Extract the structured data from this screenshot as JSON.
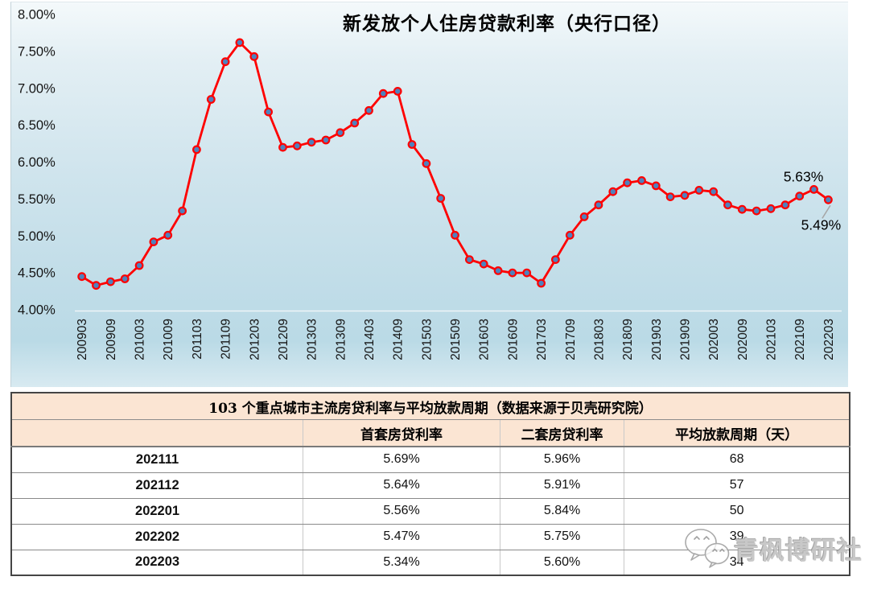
{
  "chart_data": {
    "type": "line",
    "title": "新发放个人住房贷款利率（央行口径）",
    "xlabel": "",
    "ylabel": "",
    "ylim": [
      4.0,
      8.0
    ],
    "grid": false,
    "legend": "none",
    "y_ticks": [
      "8.00%",
      "7.50%",
      "7.00%",
      "6.50%",
      "6.00%",
      "5.50%",
      "5.00%",
      "4.50%",
      "4.00%"
    ],
    "x_tick_labels": [
      "200903",
      "200909",
      "201003",
      "201009",
      "201103",
      "201109",
      "201203",
      "201209",
      "201303",
      "201309",
      "201403",
      "201409",
      "201503",
      "201509",
      "201603",
      "201609",
      "201703",
      "201709",
      "201803",
      "201809",
      "201903",
      "201909",
      "202003",
      "202009",
      "202103",
      "202109",
      "202203"
    ],
    "x": [
      "200903",
      "200906",
      "200909",
      "200912",
      "201003",
      "201006",
      "201009",
      "201012",
      "201103",
      "201106",
      "201109",
      "201112",
      "201203",
      "201206",
      "201209",
      "201212",
      "201303",
      "201306",
      "201309",
      "201312",
      "201403",
      "201406",
      "201409",
      "201412",
      "201503",
      "201506",
      "201509",
      "201512",
      "201603",
      "201606",
      "201609",
      "201612",
      "201703",
      "201706",
      "201709",
      "201712",
      "201803",
      "201806",
      "201809",
      "201812",
      "201903",
      "201906",
      "201909",
      "201912",
      "202003",
      "202006",
      "202009",
      "202012",
      "202103",
      "202106",
      "202109",
      "202112",
      "202203"
    ],
    "values": [
      4.45,
      4.33,
      4.38,
      4.42,
      4.6,
      4.92,
      5.01,
      5.34,
      6.17,
      6.85,
      7.36,
      7.62,
      7.43,
      6.68,
      6.2,
      6.22,
      6.27,
      6.3,
      6.4,
      6.53,
      6.7,
      6.93,
      6.96,
      6.24,
      5.98,
      5.51,
      5.01,
      4.68,
      4.62,
      4.53,
      4.5,
      4.5,
      4.36,
      4.68,
      5.01,
      5.26,
      5.42,
      5.6,
      5.72,
      5.75,
      5.68,
      5.53,
      5.55,
      5.62,
      5.6,
      5.42,
      5.36,
      5.34,
      5.37,
      5.42,
      5.54,
      5.63,
      5.49
    ],
    "line_color": "#fe0000",
    "marker_color": "#4f81bd",
    "annotations": [
      {
        "x": "202112",
        "text": "5.63%",
        "position": "above"
      },
      {
        "x": "202203",
        "text": "5.49%",
        "position": "below"
      }
    ]
  },
  "table": {
    "title": "103 个重点城市主流房贷利率与平均放款周期（数据来源于贝壳研究院）",
    "columns": [
      "",
      "首套房贷利率",
      "二套房贷利率",
      "平均放款周期（天）"
    ],
    "rows": [
      [
        "202111",
        "5.69%",
        "5.96%",
        "68"
      ],
      [
        "202112",
        "5.64%",
        "5.91%",
        "57"
      ],
      [
        "202201",
        "5.56%",
        "5.84%",
        "50"
      ],
      [
        "202202",
        "5.47%",
        "5.75%",
        "39"
      ],
      [
        "202203",
        "5.34%",
        "5.60%",
        "34"
      ]
    ]
  },
  "watermark": {
    "text": "青枫博研社",
    "icon": "wechat-bubbles-logo",
    "color": "#b9b9b9"
  }
}
